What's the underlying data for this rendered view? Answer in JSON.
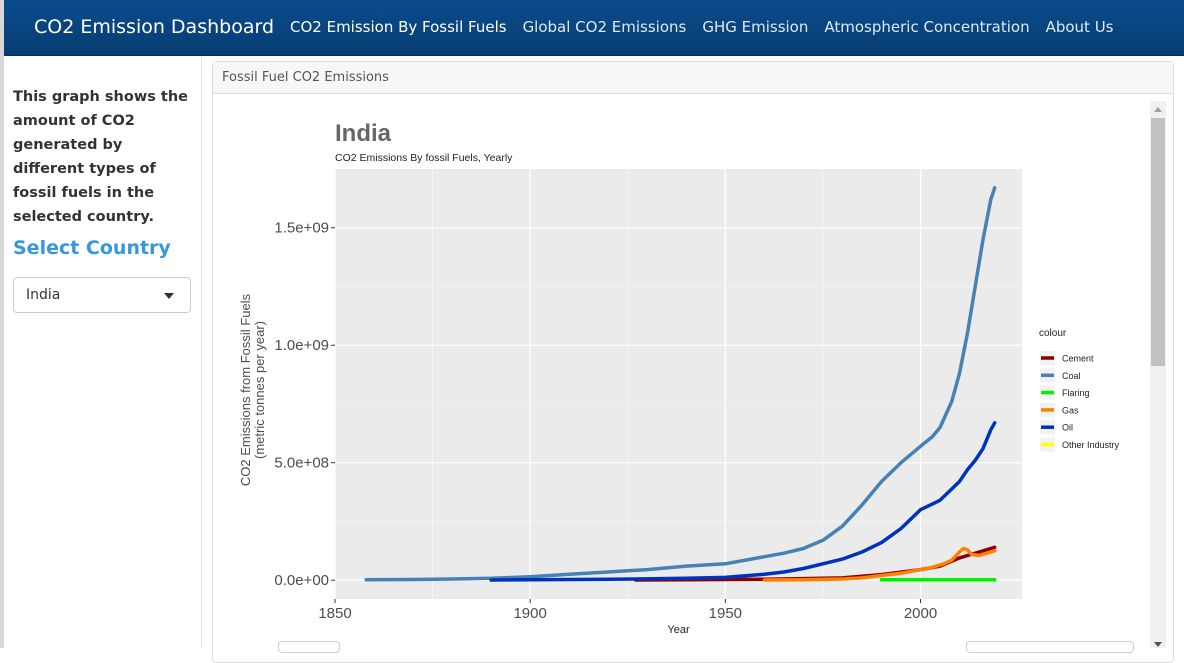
{
  "app": {
    "brand": "CO2 Emission Dashboard",
    "nav": [
      {
        "label": "CO2 Emission By Fossil Fuels",
        "active": true
      },
      {
        "label": "Global CO2 Emissions",
        "active": false
      },
      {
        "label": "GHG Emission",
        "active": false
      },
      {
        "label": "Atmospheric Concentration",
        "active": false
      },
      {
        "label": "About Us",
        "active": false
      }
    ]
  },
  "sidebar": {
    "description": "This graph shows the amount of CO2 generated by different types of fossil fuels in the selected country.",
    "select_label": "Select Country",
    "select_value": "India"
  },
  "panel": {
    "heading": "Fossil Fuel CO2 Emissions"
  },
  "chart_data": {
    "type": "line",
    "title": "India",
    "subtitle": "CO2 Emissions By fossil Fuels, Yearly",
    "xlabel": "Year",
    "ylabel": "CO2 Emissions from Fossil Fuels\n(metric tonnes per year)",
    "xlim": [
      1850,
      2026
    ],
    "ylim": [
      -80000000,
      1750000000
    ],
    "x_ticks": [
      1850,
      1900,
      1950,
      2000
    ],
    "y_ticks": [
      {
        "value": 0,
        "label": "0.0e+00"
      },
      {
        "value": 500000000,
        "label": "5.0e+08"
      },
      {
        "value": 1000000000,
        "label": "1.0e+09"
      },
      {
        "value": 1500000000,
        "label": "1.5e+09"
      }
    ],
    "grid": true,
    "legend_title": "colour",
    "legend_position": "right",
    "series": [
      {
        "name": "Cement",
        "color": "#8b0000",
        "x": [
          1927,
          1940,
          1960,
          1970,
          1980,
          1990,
          2000,
          2005,
          2010,
          2015,
          2019
        ],
        "y": [
          1000000,
          2000000,
          4000000,
          7000000,
          10000000,
          24000000,
          45000000,
          60000000,
          95000000,
          120000000,
          140000000
        ]
      },
      {
        "name": "Coal",
        "color": "#4682b4",
        "x": [
          1858,
          1870,
          1880,
          1890,
          1900,
          1910,
          1920,
          1930,
          1940,
          1950,
          1960,
          1965,
          1970,
          1975,
          1980,
          1985,
          1990,
          1995,
          2000,
          2003,
          2005,
          2008,
          2010,
          2012,
          2014,
          2016,
          2018,
          2019
        ],
        "y": [
          2000000,
          3000000,
          5000000,
          8000000,
          15000000,
          25000000,
          35000000,
          45000000,
          60000000,
          70000000,
          100000000,
          115000000,
          135000000,
          170000000,
          230000000,
          320000000,
          420000000,
          500000000,
          570000000,
          610000000,
          650000000,
          760000000,
          880000000,
          1050000000,
          1250000000,
          1450000000,
          1620000000,
          1670000000
        ]
      },
      {
        "name": "Flaring",
        "color": "#00ee00",
        "x": [
          1990,
          2000,
          2010,
          2019
        ],
        "y": [
          2000000,
          2000000,
          2000000,
          2000000
        ]
      },
      {
        "name": "Gas",
        "color": "#ff8000",
        "x": [
          1960,
          1970,
          1980,
          1985,
          1990,
          1995,
          2000,
          2003,
          2006,
          2008,
          2010,
          2011,
          2012,
          2013,
          2015,
          2017,
          2019
        ],
        "y": [
          1000000,
          2000000,
          5000000,
          10000000,
          20000000,
          30000000,
          45000000,
          55000000,
          70000000,
          85000000,
          120000000,
          135000000,
          130000000,
          110000000,
          105000000,
          115000000,
          125000000
        ]
      },
      {
        "name": "Oil",
        "color": "#0033bb",
        "x": [
          1890,
          1900,
          1920,
          1940,
          1950,
          1960,
          1965,
          1970,
          1975,
          1980,
          1985,
          1990,
          1995,
          2000,
          2005,
          2010,
          2012,
          2014,
          2016,
          2018,
          2019
        ],
        "y": [
          1000000,
          2000000,
          4000000,
          8000000,
          12000000,
          25000000,
          35000000,
          50000000,
          70000000,
          90000000,
          120000000,
          160000000,
          220000000,
          300000000,
          340000000,
          420000000,
          470000000,
          510000000,
          560000000,
          640000000,
          670000000
        ]
      },
      {
        "name": "Other Industry",
        "color": "#ffff00",
        "x": [],
        "y": []
      }
    ]
  }
}
